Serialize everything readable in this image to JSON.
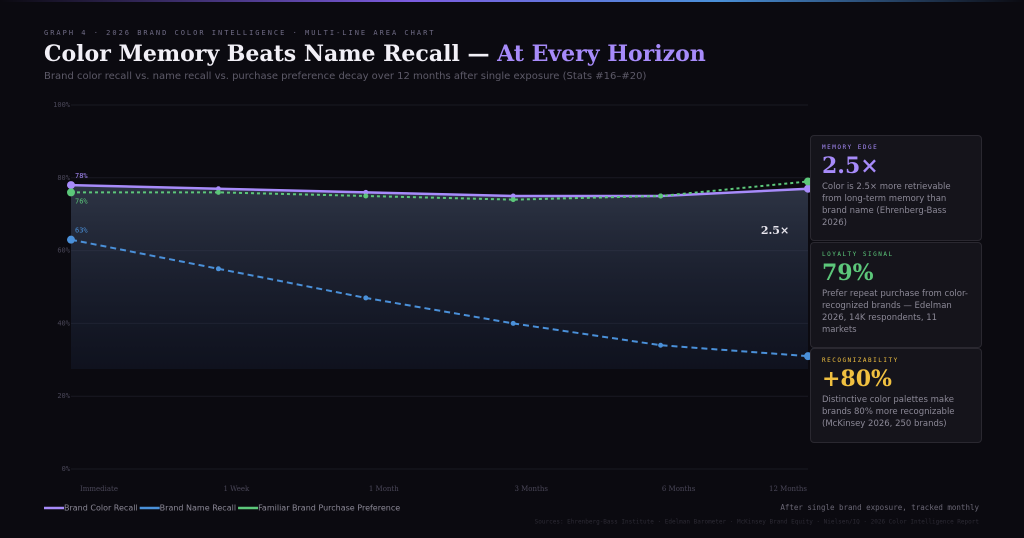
{
  "chart_data": {
    "type": "line",
    "kicker": "GRAPH 4  ·  2026 BRAND COLOR INTELLIGENCE  ·  MULTI-LINE AREA CHART",
    "title": "Color Memory Beats Name Recall — ",
    "title_highlight": "At Every Horizon",
    "subtitle": "Brand color recall vs. name recall vs. purchase preference decay over 12 months after single exposure (Stats #16–#20)",
    "categories": [
      "Immediate",
      "1 Week",
      "1 Month",
      "3 Months",
      "6 Months",
      "12 Months"
    ],
    "series": [
      {
        "name": "Brand Color Recall",
        "color": "#a78bfa",
        "values": [
          78,
          77,
          76,
          75,
          75,
          77
        ],
        "value_labels": [
          "78%",
          null,
          null,
          null,
          null,
          "77%"
        ]
      },
      {
        "name": "Brand Name Recall",
        "color": "#4a90d9",
        "values": [
          63,
          55,
          47,
          40,
          34,
          31
        ],
        "value_labels": [
          "63%",
          null,
          null,
          null,
          null,
          "31%"
        ]
      },
      {
        "name": "Familiar Brand Purchase Preference",
        "color": "#5cc77a",
        "values": [
          76,
          76,
          75,
          74,
          75,
          79
        ],
        "value_labels": [
          "76%",
          null,
          null,
          null,
          null,
          "79%"
        ]
      }
    ],
    "ylim": [
      0,
      100
    ],
    "yticks": [
      {
        "value": 0,
        "label": "0%"
      },
      {
        "value": 20,
        "label": "20%"
      },
      {
        "value": 40,
        "label": "40%"
      },
      {
        "value": 60,
        "label": "60%"
      },
      {
        "value": 80,
        "label": "80%"
      },
      {
        "value": 100,
        "label": "100%"
      }
    ],
    "grid": true,
    "annotation": "2.5×",
    "note": "After single brand exposure, tracked monthly",
    "sources": "Sources: Ehrenberg-Bass Institute · Edelman Barometer · McKinsey Brand Equity · Nielsen/IQ · 2026 Color Intelligence Report"
  },
  "cards": [
    {
      "label": "MEMORY EDGE",
      "value": "2.5×",
      "text": "Color is 2.5× more retrievable from long-term memory than brand name (Ehrenberg-Bass 2026)",
      "color": "#a78bfa"
    },
    {
      "label": "LOYALTY SIGNAL",
      "value": "79%",
      "text": "Prefer repeat purchase from color-recognized brands — Edelman 2026, 14K respondents, 11 markets",
      "color": "#5cc77a"
    },
    {
      "label": "RECOGNIZABILITY",
      "value": "+80%",
      "text": "Distinctive color palettes make brands 80% more recognizable (McKinsey 2026, 250 brands)",
      "color": "#f0c040"
    }
  ]
}
